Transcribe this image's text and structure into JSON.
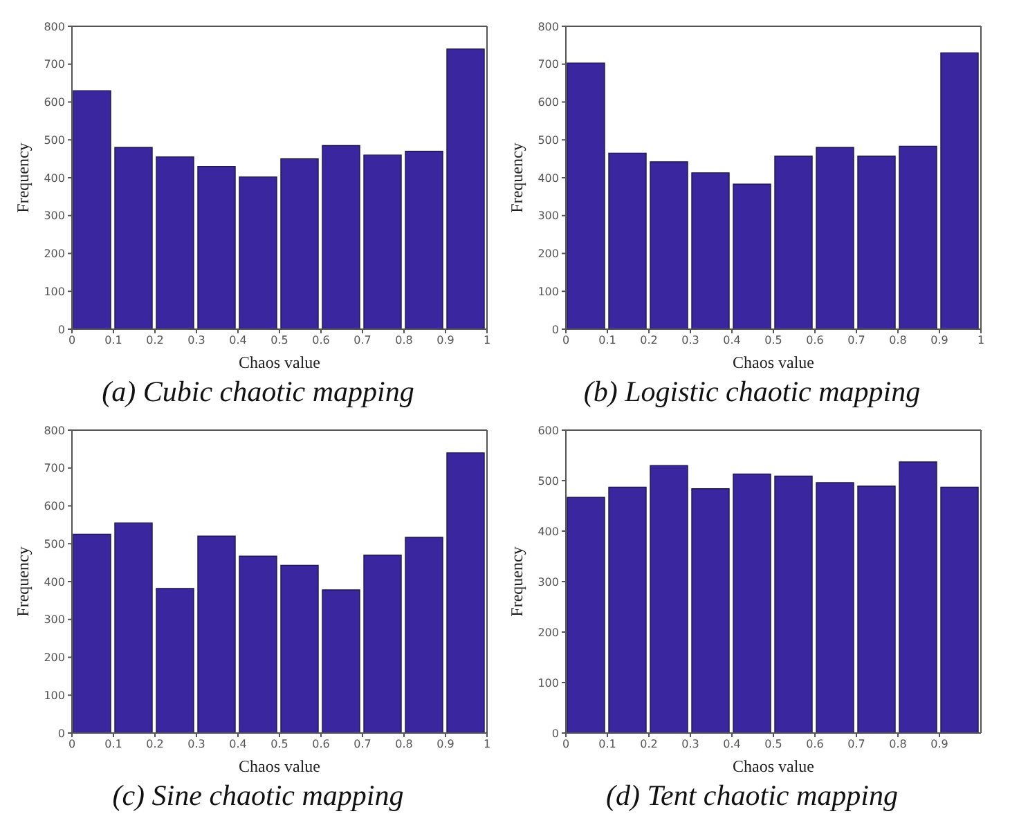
{
  "chart_data": [
    {
      "type": "histogram",
      "title": "(a) Cubic chaotic mapping",
      "xlabel": "Chaos value",
      "ylabel": "Frequency",
      "bins": [
        0,
        0.1,
        0.2,
        0.3,
        0.4,
        0.5,
        0.6,
        0.7,
        0.8,
        0.9,
        1
      ],
      "values": [
        630,
        480,
        455,
        430,
        402,
        450,
        485,
        460,
        470,
        740
      ],
      "color": "#3a27a0",
      "xlim": [
        0,
        1
      ],
      "xticks": [
        0,
        0.1,
        0.2,
        0.3,
        0.4,
        0.5,
        0.6,
        0.7,
        0.8,
        0.9,
        1
      ],
      "ylim": [
        0,
        800
      ],
      "yticks": [
        0,
        100,
        200,
        300,
        400,
        500,
        600,
        700,
        800
      ]
    },
    {
      "type": "histogram",
      "title": "(b) Logistic chaotic mapping",
      "xlabel": "Chaos value",
      "ylabel": "Frequency",
      "bins": [
        0,
        0.1,
        0.2,
        0.3,
        0.4,
        0.5,
        0.6,
        0.7,
        0.8,
        0.9,
        1
      ],
      "values": [
        703,
        465,
        442,
        413,
        383,
        457,
        480,
        457,
        483,
        730
      ],
      "color": "#3a27a0",
      "xlim": [
        0,
        1
      ],
      "xticks": [
        0,
        0.1,
        0.2,
        0.3,
        0.4,
        0.5,
        0.6,
        0.7,
        0.8,
        0.9,
        1
      ],
      "ylim": [
        0,
        800
      ],
      "yticks": [
        0,
        100,
        200,
        300,
        400,
        500,
        600,
        700,
        800
      ]
    },
    {
      "type": "histogram",
      "title": "(c) Sine chaotic mapping",
      "xlabel": "Chaos value",
      "ylabel": "Frequency",
      "bins": [
        0,
        0.1,
        0.2,
        0.3,
        0.4,
        0.5,
        0.6,
        0.7,
        0.8,
        0.9,
        1
      ],
      "values": [
        525,
        555,
        382,
        520,
        467,
        443,
        378,
        470,
        517,
        740
      ],
      "color": "#3a27a0",
      "xlim": [
        0,
        1
      ],
      "xticks": [
        0,
        0.1,
        0.2,
        0.3,
        0.4,
        0.5,
        0.6,
        0.7,
        0.8,
        0.9,
        1
      ],
      "ylim": [
        0,
        800
      ],
      "yticks": [
        0,
        100,
        200,
        300,
        400,
        500,
        600,
        700,
        800
      ]
    },
    {
      "type": "histogram",
      "title": "(d) Tent chaotic mapping",
      "xlabel": "Chaos value",
      "ylabel": "Frequency",
      "bins": [
        0,
        0.1,
        0.2,
        0.3,
        0.4,
        0.5,
        0.6,
        0.7,
        0.8,
        0.9,
        1
      ],
      "values": [
        467,
        487,
        530,
        484,
        513,
        509,
        496,
        489,
        537,
        487
      ],
      "color": "#3a27a0",
      "xlim": [
        0,
        1
      ],
      "xticks": [
        0,
        0.1,
        0.2,
        0.3,
        0.4,
        0.5,
        0.6,
        0.7,
        0.8,
        0.9
      ],
      "ylim": [
        0,
        600
      ],
      "yticks": [
        0,
        100,
        200,
        300,
        400,
        500,
        600
      ]
    }
  ]
}
